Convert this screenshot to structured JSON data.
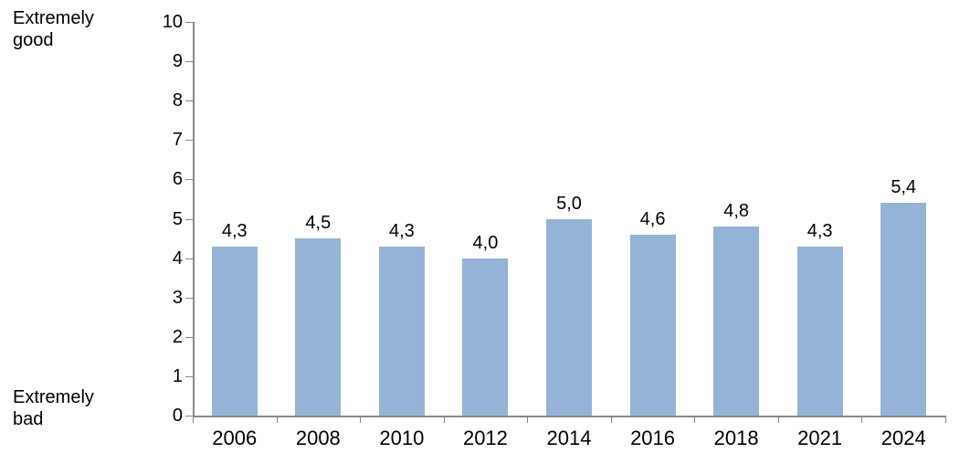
{
  "chart_data": {
    "type": "bar",
    "title": "",
    "xlabel": "",
    "ylabel": "",
    "categories": [
      "2006",
      "2008",
      "2010",
      "2012",
      "2014",
      "2016",
      "2018",
      "2021",
      "2024"
    ],
    "values": [
      4.3,
      4.5,
      4.3,
      4.0,
      5.0,
      4.6,
      4.8,
      4.3,
      5.4
    ],
    "value_labels": [
      "4,3",
      "4,5",
      "4,3",
      "4,0",
      "5,0",
      "4,6",
      "4,8",
      "4,3",
      "5,4"
    ],
    "ylim": [
      0,
      10
    ],
    "yticks": [
      0,
      1,
      2,
      3,
      4,
      5,
      6,
      7,
      8,
      9,
      10
    ],
    "y_axis_top_label": "Extremely good",
    "y_axis_bottom_label": "Extremely bad",
    "grid": false,
    "legend": "none",
    "bar_color": "#95B3D7",
    "axis_color": "#898989",
    "label_color": "#000000"
  }
}
